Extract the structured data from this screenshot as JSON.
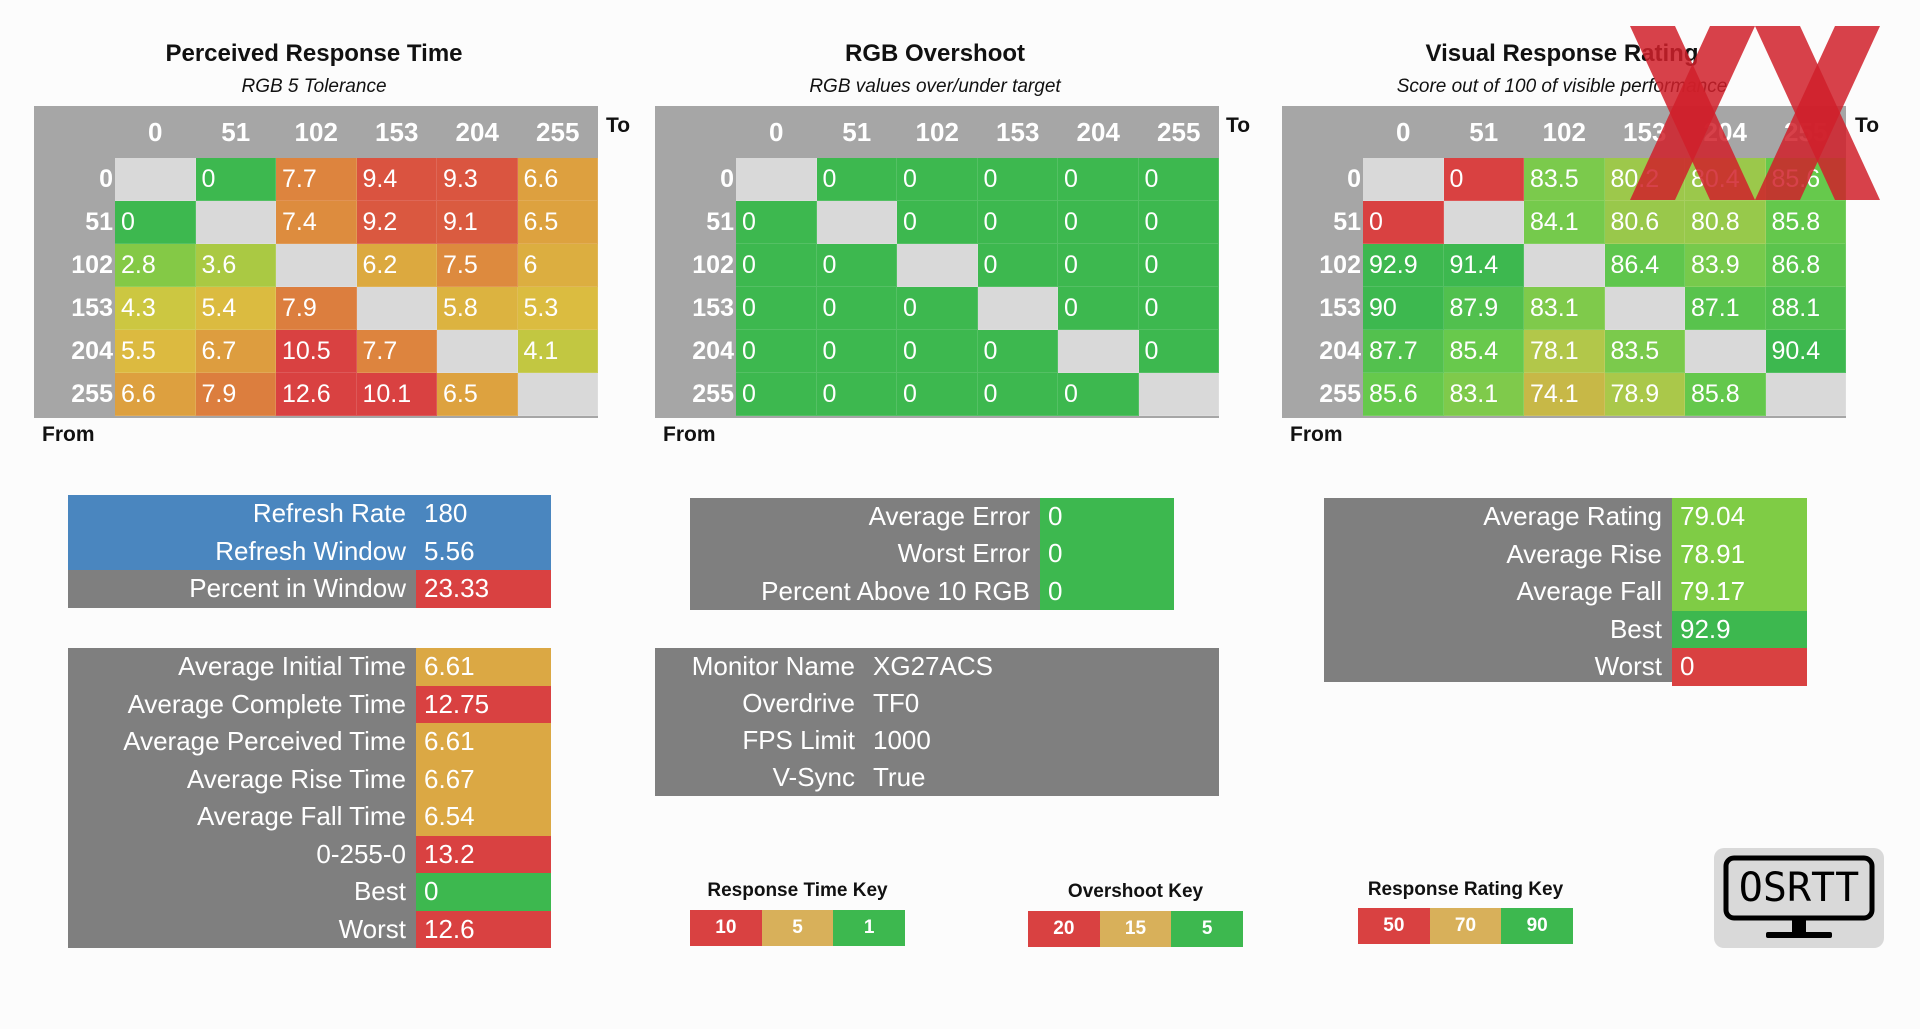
{
  "chart_data": [
    {
      "type": "heatmap",
      "title": "Perceived Response Time",
      "subtitle": "RGB 5 Tolerance",
      "xlabel": "To",
      "ylabel": "From",
      "x": [
        "0",
        "51",
        "102",
        "153",
        "204",
        "255"
      ],
      "y": [
        "0",
        "51",
        "102",
        "153",
        "204",
        "255"
      ],
      "values": [
        [
          null,
          "0",
          "7.7",
          "9.4",
          "9.3",
          "6.6"
        ],
        [
          "0",
          null,
          "7.4",
          "9.2",
          "9.1",
          "6.5"
        ],
        [
          "2.8",
          "3.6",
          null,
          "6.2",
          "7.5",
          "6"
        ],
        [
          "4.3",
          "5.4",
          "7.9",
          null,
          "5.8",
          "5.3"
        ],
        [
          "5.5",
          "6.7",
          "10.5",
          "7.7",
          null,
          "4.1"
        ],
        [
          "6.6",
          "7.9",
          "12.6",
          "10.1",
          "6.5",
          null
        ]
      ],
      "color_scale": {
        "type": "response_time",
        "stops": [
          10,
          5,
          1
        ]
      }
    },
    {
      "type": "heatmap",
      "title": "RGB Overshoot",
      "subtitle": "RGB values over/under target",
      "xlabel": "To",
      "ylabel": "From",
      "x": [
        "0",
        "51",
        "102",
        "153",
        "204",
        "255"
      ],
      "y": [
        "0",
        "51",
        "102",
        "153",
        "204",
        "255"
      ],
      "values": [
        [
          null,
          "0",
          "0",
          "0",
          "0",
          "0"
        ],
        [
          "0",
          null,
          "0",
          "0",
          "0",
          "0"
        ],
        [
          "0",
          "0",
          null,
          "0",
          "0",
          "0"
        ],
        [
          "0",
          "0",
          "0",
          null,
          "0",
          "0"
        ],
        [
          "0",
          "0",
          "0",
          "0",
          null,
          "0"
        ],
        [
          "0",
          "0",
          "0",
          "0",
          "0",
          null
        ]
      ],
      "color_scale": {
        "type": "overshoot",
        "stops": [
          20,
          15,
          5
        ]
      }
    },
    {
      "type": "heatmap",
      "title": "Visual Response Rating",
      "subtitle": "Score out of 100 of visible performance",
      "xlabel": "To",
      "ylabel": "From",
      "x": [
        "0",
        "51",
        "102",
        "153",
        "204",
        "255"
      ],
      "y": [
        "0",
        "51",
        "102",
        "153",
        "204",
        "255"
      ],
      "values": [
        [
          null,
          "0",
          "83.5",
          "80.2",
          "80.4",
          "85.6"
        ],
        [
          "0",
          null,
          "84.1",
          "80.6",
          "80.8",
          "85.8"
        ],
        [
          "92.9",
          "91.4",
          null,
          "86.4",
          "83.9",
          "86.8"
        ],
        [
          "90",
          "87.9",
          "83.1",
          null,
          "87.1",
          "88.1"
        ],
        [
          "87.7",
          "85.4",
          "78.1",
          "83.5",
          null,
          "90.4"
        ],
        [
          "85.6",
          "83.1",
          "74.1",
          "78.9",
          "85.8",
          null
        ]
      ],
      "color_scale": {
        "type": "rating",
        "stops": [
          50,
          70,
          90
        ]
      }
    }
  ],
  "refresh_panel": {
    "rows": [
      {
        "label": "Refresh Rate",
        "value": "180",
        "style": "blue"
      },
      {
        "label": "Refresh Window",
        "value": "5.56",
        "style": "blue"
      },
      {
        "label": "Percent in Window",
        "value": "23.33",
        "style": "red"
      }
    ]
  },
  "time_panel": {
    "rows": [
      {
        "label": "Average Initial Time",
        "value": "6.61",
        "color": "#dba844"
      },
      {
        "label": "Average Complete Time",
        "value": "12.75",
        "color": "#d94141"
      },
      {
        "label": "Average Perceived Time",
        "value": "6.61",
        "color": "#dba844"
      },
      {
        "label": "Average Rise Time",
        "value": "6.67",
        "color": "#dba844"
      },
      {
        "label": "Average Fall Time",
        "value": "6.54",
        "color": "#dba844"
      },
      {
        "label": "0-255-0",
        "value": "13.2",
        "color": "#d94141"
      },
      {
        "label": "Best",
        "value": "0",
        "color": "#3db84f"
      },
      {
        "label": "Worst",
        "value": "12.6",
        "color": "#d94141"
      }
    ]
  },
  "error_panel": {
    "rows": [
      {
        "label": "Average Error",
        "value": "0"
      },
      {
        "label": "Worst Error",
        "value": "0"
      },
      {
        "label": "Percent Above 10 RGB",
        "value": "0"
      }
    ]
  },
  "monitor_panel": {
    "rows": [
      {
        "label": "Monitor Name",
        "value": "XG27ACS"
      },
      {
        "label": "Overdrive",
        "value": "TF0"
      },
      {
        "label": "FPS Limit",
        "value": "1000"
      },
      {
        "label": "V-Sync",
        "value": "True"
      }
    ]
  },
  "rating_panel": {
    "rows": [
      {
        "label": "Average Rating",
        "value": "79.04",
        "color": "#7fcc45"
      },
      {
        "label": "Average Rise",
        "value": "78.91",
        "color": "#7fcc45"
      },
      {
        "label": "Average Fall",
        "value": "79.17",
        "color": "#7fcc45"
      },
      {
        "label": "Best",
        "value": "92.9",
        "color": "#3db84f"
      },
      {
        "label": "Worst",
        "value": "0",
        "color": "#d94141"
      }
    ]
  },
  "keys": [
    {
      "title": "Response Time Key",
      "items": [
        {
          "label": "10",
          "color": "#d94141"
        },
        {
          "label": "5",
          "color": "#d8b05a"
        },
        {
          "label": "1",
          "color": "#3db84f"
        }
      ]
    },
    {
      "title": "Overshoot Key",
      "items": [
        {
          "label": "20",
          "color": "#d94141"
        },
        {
          "label": "15",
          "color": "#d8b05a"
        },
        {
          "label": "5",
          "color": "#3db84f"
        }
      ]
    },
    {
      "title": "Response Rating Key",
      "items": [
        {
          "label": "50",
          "color": "#d94141"
        },
        {
          "label": "70",
          "color": "#d8b05a"
        },
        {
          "label": "90",
          "color": "#3db84f"
        }
      ]
    }
  ],
  "logo": {
    "text": "OSRTT"
  },
  "colors": {
    "red": "#d94141",
    "orange": "#dba844",
    "green": "#3db84f",
    "blue": "#4a86bf",
    "panel_gray": "#7f7f7f",
    "grid_gray": "#a6a6a6",
    "diag": "#d9d9d9",
    "watermark": "#d0202a"
  }
}
